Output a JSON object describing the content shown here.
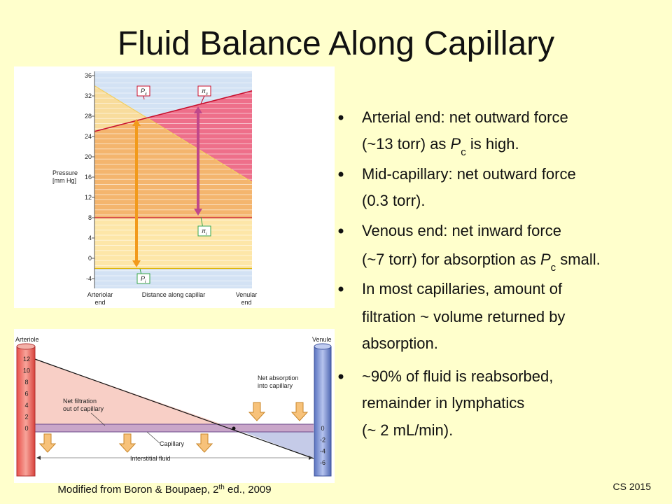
{
  "title": "Fluid Balance Along Capillary",
  "figure_top": {
    "y_axis_label": [
      "Pressure",
      "[mm Hg]"
    ],
    "yticks": [
      36,
      32,
      28,
      24,
      20,
      16,
      12,
      8,
      4,
      0,
      -4
    ],
    "x_labels": {
      "left": [
        "Arteriolar",
        "end"
      ],
      "middle": "Distance along capillar",
      "right": [
        "Venular",
        "end"
      ]
    },
    "callouts": [
      {
        "symbol": "P",
        "subscript": "c"
      },
      {
        "symbol": "π",
        "subscript": "c"
      },
      {
        "symbol": "π",
        "subscript": "i"
      },
      {
        "symbol": "P",
        "subscript": "i"
      }
    ]
  },
  "figure_bottom": {
    "arteriole": "Arteriole",
    "venule": "Venule",
    "left_scale": [
      12,
      10,
      8,
      6,
      4,
      2,
      0
    ],
    "right_scale": [
      0,
      -2,
      -4,
      -6
    ],
    "net_filtration": [
      "Net filtration",
      "out of capillary"
    ],
    "net_absorption": [
      "Net absorption",
      "into capillary"
    ],
    "capillary": "Capillary",
    "interstitial": "Interstitial fluid"
  },
  "bullets": [
    [
      "Arterial end: net outward force",
      [
        "(~13 torr) as ",
        "P",
        "c",
        " is high."
      ]
    ],
    [
      "Mid-capillary: net outward force",
      "(0.3 torr)."
    ],
    [
      "Venous end: net inward force",
      [
        "(~7 torr) for absorption as ",
        "P",
        "c",
        " small."
      ]
    ],
    [
      "In most capillaries, amount of",
      "filtration ~ volume returned by",
      "absorption."
    ],
    [
      "~90% of fluid is reabsorbed,",
      "remainder in lymphatics",
      "(~ 2 mL/min)."
    ]
  ],
  "footer": {
    "source": [
      "Modified from Boron & Boupaep, 2",
      "th",
      " ed., 2009"
    ],
    "code": "CS 2015"
  }
}
